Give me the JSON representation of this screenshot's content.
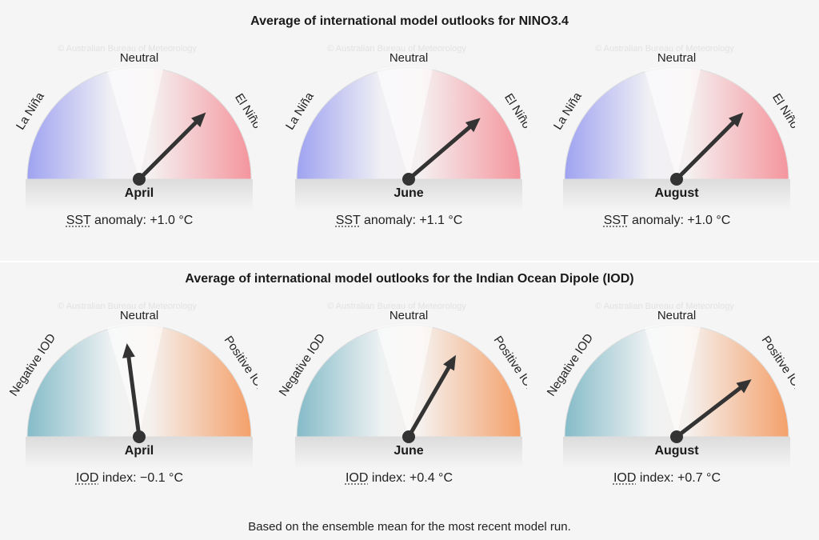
{
  "nino": {
    "title": "Average of international model outlooks for NINO3.4",
    "watermark": "© Australian Bureau of Meteorology",
    "left_label": "La Niña",
    "center_label": "Neutral",
    "right_label": "El Niño",
    "left_color": "#9a9ef0",
    "right_color": "#f4959d",
    "gauges": [
      {
        "month": "April",
        "caption_prefix": "SST",
        "caption_rest": " anomaly: +1.0 °C",
        "value": 1.0
      },
      {
        "month": "June",
        "caption_prefix": "SST",
        "caption_rest": " anomaly: +1.1 °C",
        "value": 1.1
      },
      {
        "month": "August",
        "caption_prefix": "SST",
        "caption_rest": " anomaly: +1.0 °C",
        "value": 1.0
      }
    ]
  },
  "iod": {
    "title": "Average of international model outlooks for the Indian Ocean Dipole (IOD)",
    "watermark": "© Australian Bureau of Meteorology",
    "left_label": "Negative IOD",
    "center_label": "Neutral",
    "right_label": "Positive IOD",
    "left_color": "#7fb8c6",
    "right_color": "#f4a06a",
    "gauges": [
      {
        "month": "April",
        "caption_prefix": "IOD",
        "caption_rest": " index: −0.1 °C",
        "value": -0.1
      },
      {
        "month": "June",
        "caption_prefix": "IOD",
        "caption_rest": " index: +0.4 °C",
        "value": 0.4
      },
      {
        "month": "August",
        "caption_prefix": "IOD",
        "caption_rest": " index: +0.7 °C",
        "value": 0.7
      }
    ]
  },
  "footnote": "Based on the ensemble mean for the most recent model run."
}
